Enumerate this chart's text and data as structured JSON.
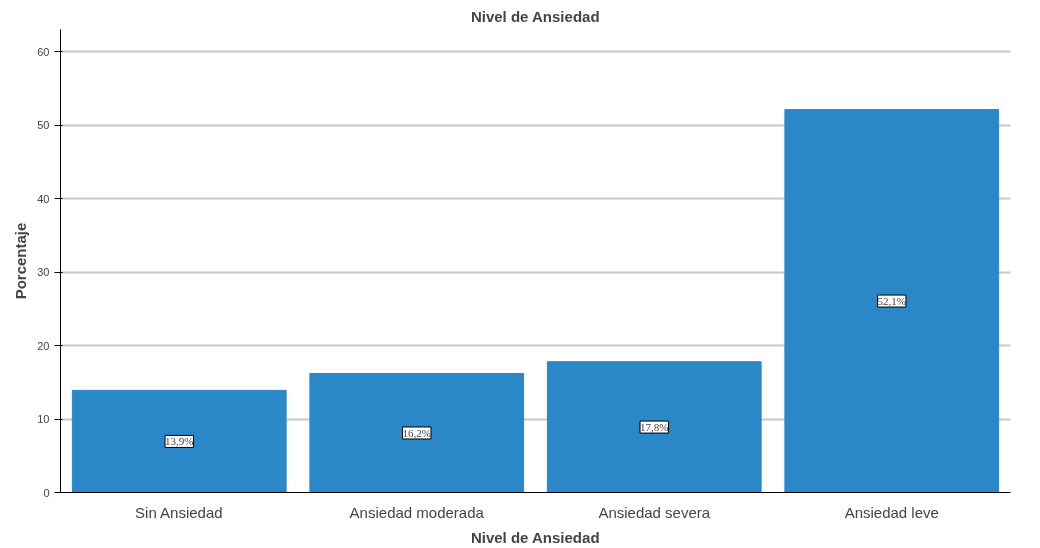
{
  "chart_data": {
    "type": "bar",
    "title": "Nivel de Ansiedad",
    "xlabel": "Nivel de Ansiedad",
    "ylabel": "Porcentaje",
    "categories": [
      "Sin Ansiedad",
      "Ansiedad moderada",
      "Ansiedad severa",
      "Ansiedad leve"
    ],
    "values": [
      13.9,
      16.2,
      17.8,
      52.1
    ],
    "value_labels": [
      "13,9%",
      "16,2%",
      "17,8%",
      "52,1%"
    ],
    "color": "#2b88c8",
    "ylim": [
      0,
      63
    ],
    "yticks": [
      0,
      10,
      20,
      30,
      40,
      50,
      60
    ],
    "grid": "y"
  }
}
